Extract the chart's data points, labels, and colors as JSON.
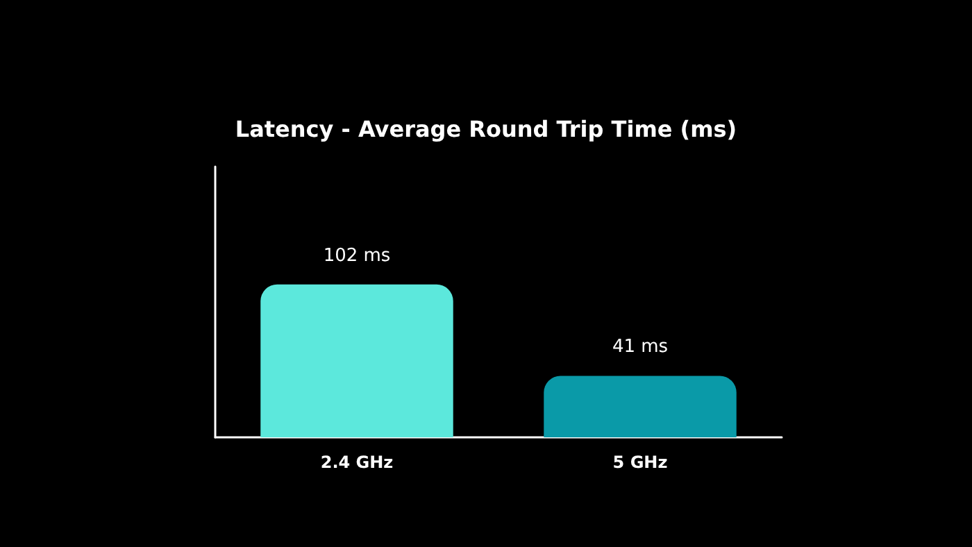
{
  "chart_data": {
    "type": "bar",
    "title": "Latency - Average Round Trip Time (ms)",
    "categories": [
      "2.4 GHz",
      "5 GHz"
    ],
    "values": [
      102,
      41
    ],
    "colors": [
      "#5ce8dc",
      "#0a9aa8"
    ],
    "value_labels": [
      "102 ms",
      "41 ms"
    ],
    "grid": false
  }
}
